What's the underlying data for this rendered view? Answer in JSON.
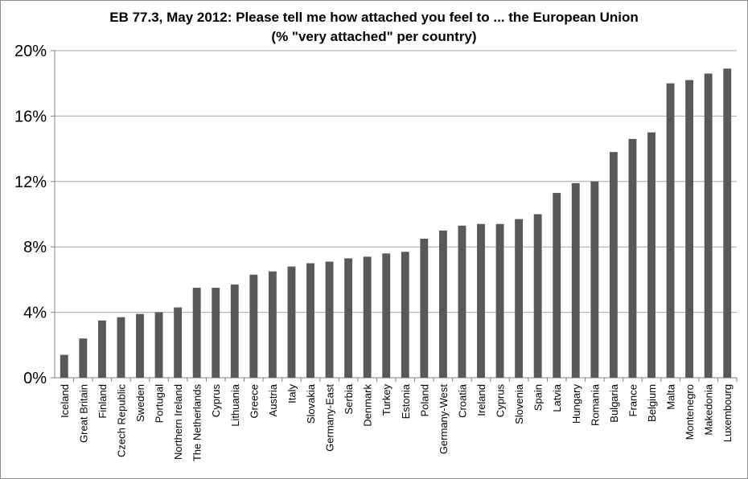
{
  "chart_data": {
    "type": "bar",
    "title": "EB 77.3, May 2012: Please tell me how attached you feel to ... the European Union",
    "subtitle": "(% \"very attached\" per country)",
    "xlabel": "",
    "ylabel": "",
    "ylim": [
      0,
      20
    ],
    "yticks": [
      "0%",
      "4%",
      "8%",
      "12%",
      "16%",
      "20%"
    ],
    "ytick_values": [
      0,
      4,
      8,
      12,
      16,
      20
    ],
    "grid": true,
    "bar_color": "#595959",
    "gridline_color": "#a6a6a6",
    "categories": [
      "Iceland",
      "Great Britain",
      "Finland",
      "Czech Republic",
      "Sweden",
      "Portugal",
      "Northern Ireland",
      "The Netherlands",
      "Cyprus",
      "Lithuania",
      "Greece",
      "Austria",
      "Italy",
      "Slovakia",
      "Germany-East",
      "Serbia",
      "Denmark",
      "Turkey",
      "Estonia",
      "Poland",
      "Germany-West",
      "Croatia",
      "Ireland",
      "Cyprus",
      "Slovenia",
      "Spain",
      "Latvia",
      "Hungary",
      "Romania",
      "Bulgaria",
      "France",
      "Belgium",
      "Malta",
      "Montenegro",
      "Makedonia",
      "Luxembourg"
    ],
    "values": [
      1.4,
      2.4,
      3.5,
      3.7,
      3.9,
      4.0,
      4.3,
      5.5,
      5.5,
      5.7,
      6.3,
      6.5,
      6.8,
      7.0,
      7.1,
      7.3,
      7.4,
      7.6,
      7.7,
      8.5,
      9.0,
      9.3,
      9.4,
      9.4,
      9.7,
      10.0,
      11.3,
      11.9,
      12.0,
      13.8,
      14.6,
      15.0,
      18.0,
      18.2,
      18.6,
      18.9
    ]
  }
}
